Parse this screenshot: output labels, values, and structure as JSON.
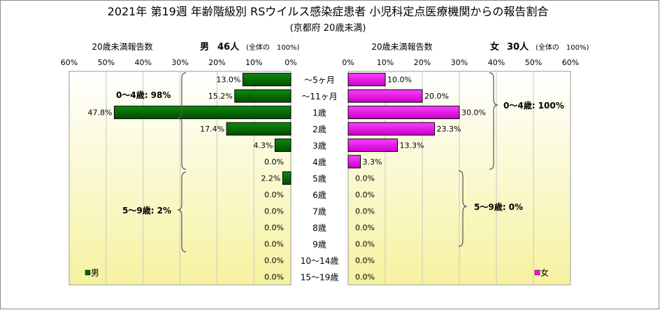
{
  "title": "2021年 第19週 年齢階級別 RSウイルス感染症患者 小児科定点医療機関からの報告割合",
  "subtitle": "(京都府 20歳未満)",
  "colors": {
    "male": "#006400",
    "female": "#ff00ff",
    "panel_top": "#ffffff",
    "panel_bottom": "#f6f2a0"
  },
  "chart_data": {
    "type": "bar",
    "categories": [
      "～5ヶ月",
      "～11ヶ月",
      "1歳",
      "2歳",
      "3歳",
      "4歳",
      "5歳",
      "6歳",
      "7歳",
      "8歳",
      "9歳",
      "10～14歳",
      "15～19歳"
    ],
    "xlim": [
      0,
      60
    ],
    "x_ticks": [
      "0%",
      "10%",
      "20%",
      "30%",
      "40%",
      "50%",
      "60%"
    ],
    "male": {
      "axis_title": "20歳未満報告数",
      "header_label": "男",
      "count_label": "46人",
      "total_note": "(全体の　100%)",
      "legend": "男",
      "values": [
        13.0,
        15.2,
        47.8,
        17.4,
        4.3,
        0.0,
        2.2,
        0.0,
        0.0,
        0.0,
        0.0,
        0.0,
        0.0
      ],
      "value_labels": [
        "13.0%",
        "15.2%",
        "47.8%",
        "17.4%",
        "4.3%",
        "0.0%",
        "2.2%",
        "0.0%",
        "0.0%",
        "0.0%",
        "0.0%",
        "0.0%",
        "0.0%"
      ],
      "group_0_4": "0～4歳: 98%",
      "group_5_9": "5～9歳: 2%"
    },
    "female": {
      "axis_title": "20歳未満報告数",
      "header_label": "女",
      "count_label": "30人",
      "total_note": "(全体の　100%)",
      "legend": "女",
      "values": [
        10.0,
        20.0,
        30.0,
        23.3,
        13.3,
        3.3,
        0.0,
        0.0,
        0.0,
        0.0,
        0.0,
        0.0,
        0.0
      ],
      "value_labels": [
        "10.0%",
        "20.0%",
        "30.0%",
        "23.3%",
        "13.3%",
        "3.3%",
        "0.0%",
        "0.0%",
        "0.0%",
        "0.0%",
        "0.0%",
        "0.0%",
        "0.0%"
      ],
      "group_0_4": "0～4歳: 100%",
      "group_5_9": "5～9歳: 0%"
    }
  }
}
